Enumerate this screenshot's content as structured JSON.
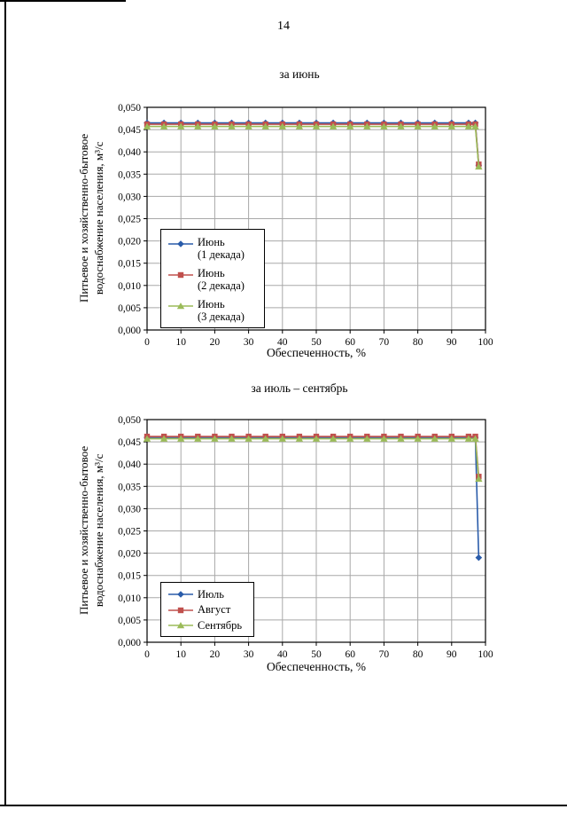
{
  "page": {
    "number": "14"
  },
  "chart_data": [
    {
      "type": "line",
      "title": "за июнь",
      "xlabel": "Обеспеченность, %",
      "ylabel_line1": "Питьевое и хозяйственно-бытовое",
      "ylabel_line2": "водоснабжение населения, м³/с",
      "xlim": [
        0,
        100
      ],
      "ylim": [
        0,
        0.05
      ],
      "grid": true,
      "legend_position": "inside-bottom-left",
      "x_ticks": [
        0,
        10,
        20,
        30,
        40,
        50,
        60,
        70,
        80,
        90,
        100
      ],
      "x_tick_labels": [
        "0",
        "10",
        "20",
        "30",
        "40",
        "50",
        "60",
        "70",
        "80",
        "90",
        "100"
      ],
      "y_ticks": [
        0,
        0.005,
        0.01,
        0.015,
        0.02,
        0.025,
        0.03,
        0.035,
        0.04,
        0.045,
        0.05
      ],
      "y_tick_labels": [
        "0,000",
        "0,005",
        "0,010",
        "0,015",
        "0,020",
        "0,025",
        "0,030",
        "0,035",
        "0,040",
        "0,045",
        "0,050"
      ],
      "x": [
        0,
        5,
        10,
        15,
        20,
        25,
        30,
        35,
        40,
        45,
        50,
        55,
        60,
        65,
        70,
        75,
        80,
        85,
        90,
        95,
        97,
        98
      ],
      "series": [
        {
          "name": "Июнь",
          "sublabel": "(1 декада)",
          "color": "#2a5caa",
          "marker": "diamond",
          "y": [
            0.0465,
            0.0465,
            0.0465,
            0.0465,
            0.0465,
            0.0465,
            0.0465,
            0.0465,
            0.0465,
            0.0465,
            0.0465,
            0.0465,
            0.0465,
            0.0465,
            0.0465,
            0.0465,
            0.0465,
            0.0465,
            0.0465,
            0.0465,
            0.0465,
            0.037
          ]
        },
        {
          "name": "Июнь",
          "sublabel": "(2 декада)",
          "color": "#c0504d",
          "marker": "square",
          "y": [
            0.0462,
            0.0462,
            0.0462,
            0.0462,
            0.0462,
            0.0462,
            0.0462,
            0.0462,
            0.0462,
            0.0462,
            0.0462,
            0.0462,
            0.0462,
            0.0462,
            0.0462,
            0.0462,
            0.0462,
            0.0462,
            0.0462,
            0.0462,
            0.0462,
            0.0372
          ]
        },
        {
          "name": "Июнь",
          "sublabel": "(3 декада)",
          "color": "#9bbb59",
          "marker": "triangle",
          "y": [
            0.0457,
            0.0457,
            0.0457,
            0.0457,
            0.0457,
            0.0457,
            0.0457,
            0.0457,
            0.0457,
            0.0457,
            0.0457,
            0.0457,
            0.0457,
            0.0457,
            0.0457,
            0.0457,
            0.0457,
            0.0457,
            0.0457,
            0.0457,
            0.0457,
            0.0367
          ]
        }
      ]
    },
    {
      "type": "line",
      "title": "за июль – сентябрь",
      "xlabel": "Обеспеченность, %",
      "ylabel_line1": "Питьевое и хозяйственно-бытовое",
      "ylabel_line2": "водоснабжение населения, м³/с",
      "xlim": [
        0,
        100
      ],
      "ylim": [
        0,
        0.05
      ],
      "grid": true,
      "legend_position": "inside-bottom-left",
      "x_ticks": [
        0,
        10,
        20,
        30,
        40,
        50,
        60,
        70,
        80,
        90,
        100
      ],
      "x_tick_labels": [
        "0",
        "10",
        "20",
        "30",
        "40",
        "50",
        "60",
        "70",
        "80",
        "90",
        "100"
      ],
      "y_ticks": [
        0,
        0.005,
        0.01,
        0.015,
        0.02,
        0.025,
        0.03,
        0.035,
        0.04,
        0.045,
        0.05
      ],
      "y_tick_labels": [
        "0,000",
        "0,005",
        "0,010",
        "0,015",
        "0,020",
        "0,025",
        "0,030",
        "0,035",
        "0,040",
        "0,045",
        "0,050"
      ],
      "x": [
        0,
        5,
        10,
        15,
        20,
        25,
        30,
        35,
        40,
        45,
        50,
        55,
        60,
        65,
        70,
        75,
        80,
        85,
        90,
        95,
        97,
        98
      ],
      "series": [
        {
          "name": "Июль",
          "sublabel": "",
          "color": "#2a5caa",
          "marker": "diamond",
          "y": [
            0.046,
            0.046,
            0.046,
            0.046,
            0.046,
            0.046,
            0.046,
            0.046,
            0.046,
            0.046,
            0.046,
            0.046,
            0.046,
            0.046,
            0.046,
            0.046,
            0.046,
            0.046,
            0.046,
            0.046,
            0.046,
            0.019
          ]
        },
        {
          "name": "Август",
          "sublabel": "",
          "color": "#c0504d",
          "marker": "square",
          "y": [
            0.0462,
            0.0462,
            0.0462,
            0.0462,
            0.0462,
            0.0462,
            0.0462,
            0.0462,
            0.0462,
            0.0462,
            0.0462,
            0.0462,
            0.0462,
            0.0462,
            0.0462,
            0.0462,
            0.0462,
            0.0462,
            0.0462,
            0.0462,
            0.0462,
            0.0372
          ]
        },
        {
          "name": "Сентябрь",
          "sublabel": "",
          "color": "#9bbb59",
          "marker": "triangle",
          "y": [
            0.0457,
            0.0457,
            0.0457,
            0.0457,
            0.0457,
            0.0457,
            0.0457,
            0.0457,
            0.0457,
            0.0457,
            0.0457,
            0.0457,
            0.0457,
            0.0457,
            0.0457,
            0.0457,
            0.0457,
            0.0457,
            0.0457,
            0.0457,
            0.0457,
            0.0367
          ]
        }
      ]
    }
  ],
  "style": {
    "grid_color": "#a8a8a8",
    "axis_color": "#000000",
    "plot_bg": "#ffffff"
  }
}
